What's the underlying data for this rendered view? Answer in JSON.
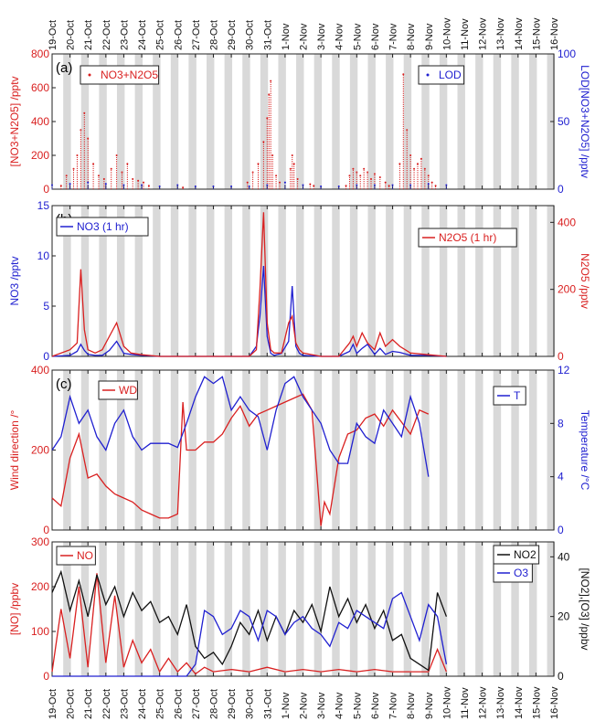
{
  "dates": [
    "19-Oct",
    "20-Oct",
    "21-Oct",
    "22-Oct",
    "23-Oct",
    "24-Oct",
    "25-Oct",
    "26-Oct",
    "27-Oct",
    "28-Oct",
    "29-Oct",
    "30-Oct",
    "31-Oct",
    "1-Nov",
    "2-Nov",
    "3-Nov",
    "4-Nov",
    "5-Nov",
    "6-Nov",
    "7-Nov",
    "8-Nov",
    "9-Nov",
    "10-Nov",
    "11-Nov",
    "12-Nov",
    "13-Nov",
    "14-Nov",
    "15-Nov",
    "16-Nov"
  ],
  "colors": {
    "red": "#d92020",
    "blue": "#2020d0",
    "black": "#111111",
    "night": "#d9d9d9"
  },
  "chart_data": [
    {
      "type": "scatter",
      "panel_label": "(a)",
      "ylabel_left": "[NO3+N2O5] /pptv",
      "ylabel_right": "LOD[NO3+N2O5] /pptv",
      "ylim_left": [
        0,
        800
      ],
      "yticks_left": [
        "0",
        "200",
        "400",
        "600",
        "800"
      ],
      "ylim_right": [
        0,
        100
      ],
      "yticks_right": [
        "0",
        "50",
        "100"
      ],
      "legend": [
        "NO3+N2O5",
        "LOD"
      ],
      "series": [
        {
          "name": "NO3+N2O5",
          "axis": "left",
          "color": "red",
          "x": [
            19.5,
            19.8,
            20.2,
            20.4,
            20.6,
            20.8,
            21.0,
            21.3,
            21.6,
            21.9,
            22.3,
            22.6,
            22.9,
            23.2,
            23.5,
            23.8,
            24.1,
            24.4,
            26.3,
            29.9,
            30.2,
            30.5,
            30.8,
            31.0,
            31.1,
            31.2,
            31.3,
            31.5,
            31.7,
            32.3,
            32.4,
            32.5,
            32.7,
            33.4,
            33.6,
            35.4,
            35.6,
            35.8,
            36.0,
            36.2,
            36.4,
            36.6,
            36.8,
            37.0,
            37.3,
            37.6,
            37.8,
            38.4,
            38.6,
            38.8,
            39.0,
            39.2,
            39.4,
            39.6,
            39.8,
            40.0,
            40.2,
            40.4
          ],
          "y": [
            20,
            80,
            120,
            200,
            350,
            450,
            300,
            150,
            80,
            60,
            120,
            200,
            100,
            150,
            60,
            50,
            40,
            20,
            10,
            40,
            100,
            150,
            280,
            420,
            560,
            640,
            200,
            80,
            40,
            120,
            200,
            150,
            60,
            30,
            20,
            20,
            80,
            120,
            100,
            80,
            120,
            100,
            60,
            90,
            70,
            40,
            20,
            150,
            680,
            350,
            200,
            120,
            150,
            180,
            120,
            80,
            40,
            20
          ]
        },
        {
          "name": "LOD",
          "axis": "right",
          "color": "blue",
          "x": [
            19,
            20,
            21,
            22,
            23,
            24,
            25,
            26,
            27,
            28,
            29,
            30,
            31,
            32,
            33,
            34,
            35,
            36,
            37,
            38,
            39,
            40,
            41
          ],
          "y": [
            3,
            4,
            5,
            4,
            3,
            3,
            2,
            3,
            2,
            2,
            2,
            2,
            3,
            5,
            3,
            2,
            2,
            3,
            3,
            3,
            3,
            4,
            3
          ]
        }
      ]
    },
    {
      "type": "line",
      "panel_label": "(b)",
      "ylabel_left": "NO3 /pptv",
      "ylabel_right": "N2O5 /pptv",
      "ylim_left": [
        0,
        15
      ],
      "yticks_left": [
        "0",
        "5",
        "10",
        "15"
      ],
      "ylim_right": [
        0,
        450
      ],
      "yticks_right": [
        "0",
        "200",
        "400"
      ],
      "legend": [
        "NO3 (1 hr)",
        "N2O5 (1 hr)"
      ],
      "series": [
        {
          "name": "NO3 (1 hr)",
          "axis": "left",
          "color": "blue",
          "x": [
            19,
            20,
            20.4,
            20.6,
            20.8,
            21.0,
            21.4,
            21.8,
            22.2,
            22.6,
            23.0,
            23.4,
            24.0,
            25.0,
            26.0,
            27.0,
            28.0,
            29.0,
            30.0,
            30.4,
            30.6,
            30.8,
            31.0,
            31.2,
            31.4,
            31.8,
            32.2,
            32.4,
            32.6,
            32.8,
            33.0,
            34.0,
            35.0,
            35.6,
            35.8,
            36.0,
            36.3,
            36.6,
            37.0,
            37.3,
            37.6,
            38.0,
            38.4,
            39.0,
            40.0,
            41.0
          ],
          "y": [
            0,
            0.1,
            0.5,
            1.2,
            0.6,
            0.2,
            0.1,
            0.1,
            0.6,
            1.5,
            0.3,
            0.2,
            0.1,
            0,
            0,
            0,
            0,
            0,
            0,
            1,
            4,
            9,
            2,
            0.3,
            0.1,
            0.3,
            1.5,
            7,
            1,
            0.3,
            0.1,
            0,
            0,
            0.5,
            1.2,
            0.3,
            0.8,
            1.2,
            0.2,
            0.8,
            0.2,
            0.5,
            0.4,
            0.1,
            0.1,
            0
          ]
        },
        {
          "name": "N2O5 (1 hr)",
          "axis": "right",
          "color": "red",
          "x": [
            19,
            20,
            20.4,
            20.6,
            20.8,
            21.0,
            21.4,
            21.8,
            22.2,
            22.6,
            23.0,
            23.4,
            24.0,
            25.0,
            26.0,
            27.0,
            28.0,
            29.0,
            30.0,
            30.4,
            30.6,
            30.8,
            31.0,
            31.2,
            31.4,
            31.8,
            32.2,
            32.4,
            32.6,
            32.8,
            33.0,
            34.0,
            35.0,
            35.6,
            35.8,
            36.0,
            36.3,
            36.6,
            37.0,
            37.3,
            37.6,
            38.0,
            38.4,
            39.0,
            40.0,
            41.0
          ],
          "y": [
            0,
            20,
            40,
            260,
            80,
            20,
            10,
            20,
            60,
            100,
            30,
            10,
            5,
            0,
            0,
            0,
            0,
            0,
            0,
            20,
            200,
            430,
            100,
            20,
            10,
            10,
            100,
            120,
            40,
            20,
            10,
            0,
            0,
            40,
            60,
            30,
            70,
            40,
            20,
            70,
            30,
            50,
            30,
            10,
            5,
            0
          ]
        }
      ]
    },
    {
      "type": "line",
      "panel_label": "(c)",
      "ylabel_left": "Wind direction /°",
      "ylabel_right": "Temperature /°C",
      "ylim_left": [
        0,
        400
      ],
      "yticks_left": [
        "0",
        "200",
        "400"
      ],
      "ylim_right": [
        0,
        12
      ],
      "yticks_right": [
        "0",
        "4",
        "8",
        "12"
      ],
      "legend": [
        "WD",
        "T"
      ],
      "series": [
        {
          "name": "WD",
          "axis": "left",
          "color": "red",
          "x": [
            19,
            19.5,
            20,
            20.5,
            21,
            21.5,
            22,
            22.5,
            23,
            23.5,
            24,
            24.5,
            25,
            25.5,
            26,
            26.3,
            26.5,
            27,
            27.5,
            28,
            28.5,
            29,
            29.5,
            30,
            30.5,
            31,
            31.5,
            32,
            32.5,
            33,
            33.5,
            34,
            34.2,
            34.5,
            35,
            35.5,
            36,
            36.5,
            37,
            37.5,
            38,
            38.5,
            39,
            39.5,
            40
          ],
          "y": [
            80,
            60,
            180,
            240,
            130,
            140,
            110,
            90,
            80,
            70,
            50,
            40,
            30,
            30,
            40,
            320,
            200,
            200,
            220,
            220,
            240,
            280,
            310,
            260,
            290,
            300,
            310,
            320,
            330,
            340,
            300,
            10,
            70,
            40,
            180,
            240,
            250,
            280,
            290,
            260,
            300,
            270,
            240,
            300,
            290
          ]
        },
        {
          "name": "T",
          "axis": "right",
          "color": "blue",
          "x": [
            19,
            19.5,
            20,
            20.5,
            21,
            21.5,
            22,
            22.5,
            23,
            23.5,
            24,
            24.5,
            25,
            25.5,
            26,
            26.5,
            27,
            27.5,
            28,
            28.5,
            29,
            29.5,
            30,
            30.5,
            31,
            31.5,
            32,
            32.5,
            33,
            33.5,
            34,
            34.5,
            35,
            35.5,
            36,
            36.5,
            37,
            37.5,
            38,
            38.5,
            39,
            39.5,
            40
          ],
          "y": [
            6,
            7,
            10,
            8,
            9,
            7,
            6,
            8,
            9,
            7,
            6,
            6.5,
            6.5,
            6.5,
            6.2,
            8,
            10,
            11.5,
            11,
            11.5,
            9,
            10,
            9,
            8.5,
            6,
            9,
            11,
            11.5,
            10,
            9,
            8,
            6,
            5,
            5,
            8,
            7,
            6.5,
            9,
            8,
            7,
            10,
            8,
            4
          ]
        }
      ]
    },
    {
      "type": "line",
      "panel_label": "(d)",
      "ylabel_left": "[NO] /ppbv",
      "ylabel_right": "[NO2],[O3] /ppbv",
      "ylim_left": [
        0,
        300
      ],
      "yticks_left": [
        "0",
        "100",
        "200",
        "300"
      ],
      "ylim_right": [
        0,
        45
      ],
      "yticks_right": [
        "0",
        "20",
        "40"
      ],
      "legend": [
        "NO",
        "NO2",
        "O3"
      ],
      "series": [
        {
          "name": "NO",
          "axis": "left",
          "color": "red",
          "x": [
            19,
            19.5,
            20,
            20.5,
            21,
            21.5,
            22,
            22.5,
            23,
            23.5,
            24,
            24.5,
            25,
            25.5,
            26,
            26.5,
            27,
            27.5,
            28,
            29,
            30,
            31,
            32,
            33,
            34,
            35,
            36,
            37,
            38,
            39,
            40,
            40.5,
            41
          ],
          "y": [
            10,
            150,
            40,
            200,
            20,
            230,
            30,
            180,
            20,
            80,
            30,
            60,
            10,
            40,
            10,
            30,
            5,
            20,
            10,
            15,
            10,
            20,
            10,
            15,
            10,
            15,
            10,
            15,
            10,
            10,
            10,
            60,
            10
          ]
        },
        {
          "name": "NO2",
          "axis": "right",
          "color": "black",
          "x": [
            19,
            19.5,
            20,
            20.5,
            21,
            21.5,
            22,
            22.5,
            23,
            23.5,
            24,
            24.5,
            25,
            25.5,
            26,
            26.5,
            27,
            27.5,
            28,
            28.5,
            29,
            29.5,
            30,
            30.5,
            31,
            31.5,
            32,
            32.5,
            33,
            33.5,
            34,
            34.5,
            35,
            35.5,
            36,
            36.5,
            37,
            37.5,
            38,
            38.5,
            39,
            39.5,
            40,
            40.5,
            41
          ],
          "y": [
            28,
            35,
            22,
            32,
            20,
            34,
            24,
            30,
            20,
            28,
            22,
            25,
            18,
            20,
            14,
            24,
            10,
            6,
            8,
            4,
            10,
            18,
            14,
            22,
            12,
            20,
            14,
            22,
            18,
            24,
            15,
            30,
            20,
            26,
            18,
            24,
            16,
            22,
            12,
            14,
            6,
            4,
            2,
            28,
            20
          ]
        },
        {
          "name": "O3",
          "axis": "right",
          "color": "blue",
          "x": [
            19,
            20,
            21,
            22,
            23,
            24,
            25,
            26,
            26.5,
            27,
            27.5,
            28,
            28.5,
            29,
            29.5,
            30,
            30.5,
            31,
            31.5,
            32,
            32.5,
            33,
            33.5,
            34,
            34.5,
            35,
            35.5,
            36,
            36.5,
            37,
            37.5,
            38,
            38.5,
            39,
            39.5,
            40,
            40.5,
            41
          ],
          "y": [
            0,
            0,
            0,
            0,
            0,
            0,
            0,
            0,
            0,
            4,
            22,
            20,
            14,
            16,
            22,
            20,
            12,
            22,
            20,
            14,
            18,
            20,
            16,
            14,
            10,
            18,
            16,
            22,
            20,
            18,
            16,
            26,
            28,
            20,
            12,
            24,
            20,
            4
          ]
        }
      ]
    }
  ]
}
